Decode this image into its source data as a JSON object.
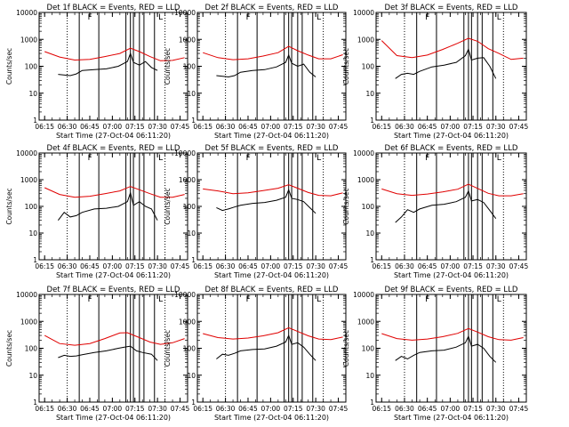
{
  "chart_data": {
    "type": "line",
    "yscale": "log",
    "ylim": [
      1,
      10000
    ],
    "xlim": [
      "06:11:20",
      "07:50:00"
    ],
    "ylabel": "Counts/sec",
    "xlabel": "Start Time (27-Oct-04 06:11:20)",
    "x_tick_labels": [
      "06:15",
      "06:30",
      "06:45",
      "07:00",
      "07:15",
      "07:30",
      "07:45"
    ],
    "y_tick_labels": [
      "1",
      "10",
      "100",
      "1000",
      "10000"
    ],
    "series_colors": {
      "events": "#000000",
      "lld": "#e00000"
    },
    "dotted_lines": [
      "06:30:00",
      "07:35:00"
    ],
    "solid_lines": [
      "06:38:00",
      "06:51:00",
      "07:09:00",
      "07:12:00",
      "07:14:00",
      "07:18:00",
      "07:21:00",
      "07:28:00"
    ],
    "markers": [
      {
        "time": "06:43:00",
        "label": "F"
      },
      {
        "time": "07:30:00",
        "label": "L"
      }
    ],
    "panels": [
      {
        "title": "Det 1f BLACK = Events, RED = LLD",
        "lld": [
          [
            "06:15",
            350
          ],
          [
            "06:25",
            220
          ],
          [
            "06:35",
            170
          ],
          [
            "06:45",
            180
          ],
          [
            "06:55",
            230
          ],
          [
            "07:05",
            300
          ],
          [
            "07:12",
            470
          ],
          [
            "07:18",
            350
          ],
          [
            "07:25",
            230
          ],
          [
            "07:32",
            160
          ],
          [
            "07:40",
            165
          ],
          [
            "07:48",
            210
          ]
        ],
        "events": [
          [
            "06:24",
            50
          ],
          [
            "06:32",
            45
          ],
          [
            "06:36",
            52
          ],
          [
            "06:40",
            70
          ],
          [
            "06:48",
            75
          ],
          [
            "06:56",
            80
          ],
          [
            "07:04",
            100
          ],
          [
            "07:10",
            150
          ],
          [
            "07:12",
            300
          ],
          [
            "07:14",
            140
          ],
          [
            "07:18",
            110
          ],
          [
            "07:22",
            150
          ],
          [
            "07:26",
            90
          ],
          [
            "07:30",
            70
          ]
        ]
      },
      {
        "title": "Det 2f BLACK = Events, RED = LLD",
        "lld": [
          [
            "06:15",
            320
          ],
          [
            "06:25",
            210
          ],
          [
            "06:35",
            175
          ],
          [
            "06:45",
            190
          ],
          [
            "06:55",
            240
          ],
          [
            "07:05",
            320
          ],
          [
            "07:12",
            550
          ],
          [
            "07:18",
            380
          ],
          [
            "07:25",
            260
          ],
          [
            "07:32",
            190
          ],
          [
            "07:40",
            190
          ],
          [
            "07:48",
            270
          ]
        ],
        "events": [
          [
            "06:24",
            45
          ],
          [
            "06:32",
            40
          ],
          [
            "06:36",
            45
          ],
          [
            "06:40",
            60
          ],
          [
            "06:48",
            70
          ],
          [
            "06:56",
            75
          ],
          [
            "07:04",
            95
          ],
          [
            "07:10",
            140
          ],
          [
            "07:12",
            260
          ],
          [
            "07:14",
            130
          ],
          [
            "07:18",
            100
          ],
          [
            "07:22",
            120
          ],
          [
            "07:26",
            60
          ],
          [
            "07:30",
            40
          ]
        ]
      },
      {
        "title": "Det 3f BLACK = Events, RED = LLD",
        "lld": [
          [
            "06:15",
            900
          ],
          [
            "06:25",
            250
          ],
          [
            "06:35",
            210
          ],
          [
            "06:45",
            260
          ],
          [
            "06:55",
            420
          ],
          [
            "07:05",
            720
          ],
          [
            "07:12",
            1100
          ],
          [
            "07:18",
            850
          ],
          [
            "07:25",
            450
          ],
          [
            "07:32",
            300
          ],
          [
            "07:40",
            180
          ],
          [
            "07:48",
            200
          ]
        ],
        "events": [
          [
            "06:24",
            35
          ],
          [
            "06:28",
            50
          ],
          [
            "06:32",
            55
          ],
          [
            "06:36",
            50
          ],
          [
            "06:40",
            65
          ],
          [
            "06:48",
            95
          ],
          [
            "06:56",
            110
          ],
          [
            "07:04",
            140
          ],
          [
            "07:10",
            250
          ],
          [
            "07:12",
            430
          ],
          [
            "07:14",
            170
          ],
          [
            "07:18",
            200
          ],
          [
            "07:22",
            210
          ],
          [
            "07:26",
            100
          ],
          [
            "07:30",
            35
          ]
        ]
      },
      {
        "title": "Det 4f BLACK = Events, RED = LLD",
        "lld": [
          [
            "06:15",
            500
          ],
          [
            "06:25",
            280
          ],
          [
            "06:35",
            220
          ],
          [
            "06:45",
            240
          ],
          [
            "06:55",
            300
          ],
          [
            "07:05",
            380
          ],
          [
            "07:12",
            560
          ],
          [
            "07:18",
            420
          ],
          [
            "07:25",
            300
          ],
          [
            "07:32",
            220
          ],
          [
            "07:40",
            220
          ],
          [
            "07:48",
            280
          ]
        ],
        "events": [
          [
            "06:24",
            30
          ],
          [
            "06:28",
            60
          ],
          [
            "06:32",
            40
          ],
          [
            "06:36",
            45
          ],
          [
            "06:40",
            60
          ],
          [
            "06:48",
            80
          ],
          [
            "06:56",
            85
          ],
          [
            "07:04",
            100
          ],
          [
            "07:10",
            150
          ],
          [
            "07:12",
            320
          ],
          [
            "07:14",
            110
          ],
          [
            "07:18",
            150
          ],
          [
            "07:22",
            100
          ],
          [
            "07:26",
            80
          ],
          [
            "07:30",
            30
          ]
        ]
      },
      {
        "title": "Det 5f BLACK = Events, RED = LLD",
        "lld": [
          [
            "06:15",
            450
          ],
          [
            "06:25",
            380
          ],
          [
            "06:35",
            300
          ],
          [
            "06:45",
            320
          ],
          [
            "06:55",
            390
          ],
          [
            "07:05",
            480
          ],
          [
            "07:12",
            650
          ],
          [
            "07:18",
            480
          ],
          [
            "07:25",
            330
          ],
          [
            "07:32",
            260
          ],
          [
            "07:40",
            250
          ],
          [
            "07:48",
            320
          ]
        ],
        "events": [
          [
            "06:24",
            90
          ],
          [
            "06:28",
            70
          ],
          [
            "06:32",
            80
          ],
          [
            "06:36",
            95
          ],
          [
            "06:40",
            110
          ],
          [
            "06:48",
            130
          ],
          [
            "06:56",
            140
          ],
          [
            "07:04",
            170
          ],
          [
            "07:10",
            220
          ],
          [
            "07:12",
            420
          ],
          [
            "07:14",
            200
          ],
          [
            "07:18",
            180
          ],
          [
            "07:22",
            150
          ],
          [
            "07:26",
            90
          ],
          [
            "07:30",
            55
          ]
        ]
      },
      {
        "title": "Det 6f BLACK = Events, RED = LLD",
        "lld": [
          [
            "06:15",
            450
          ],
          [
            "06:25",
            300
          ],
          [
            "06:35",
            260
          ],
          [
            "06:45",
            290
          ],
          [
            "06:55",
            350
          ],
          [
            "07:05",
            440
          ],
          [
            "07:12",
            680
          ],
          [
            "07:18",
            470
          ],
          [
            "07:25",
            310
          ],
          [
            "07:32",
            250
          ],
          [
            "07:40",
            250
          ],
          [
            "07:48",
            300
          ]
        ],
        "events": [
          [
            "06:24",
            25
          ],
          [
            "06:28",
            40
          ],
          [
            "06:32",
            75
          ],
          [
            "06:36",
            60
          ],
          [
            "06:40",
            80
          ],
          [
            "06:48",
            110
          ],
          [
            "06:56",
            120
          ],
          [
            "07:04",
            150
          ],
          [
            "07:10",
            220
          ],
          [
            "07:12",
            380
          ],
          [
            "07:14",
            160
          ],
          [
            "07:18",
            180
          ],
          [
            "07:22",
            140
          ],
          [
            "07:26",
            70
          ],
          [
            "07:30",
            35
          ]
        ]
      },
      {
        "title": "Det 7f BLACK = Events, RED = LLD",
        "lld": [
          [
            "06:15",
            300
          ],
          [
            "06:25",
            150
          ],
          [
            "06:35",
            130
          ],
          [
            "06:45",
            150
          ],
          [
            "06:55",
            230
          ],
          [
            "07:05",
            370
          ],
          [
            "07:10",
            380
          ],
          [
            "07:18",
            250
          ],
          [
            "07:25",
            170
          ],
          [
            "07:32",
            140
          ],
          [
            "07:40",
            160
          ],
          [
            "07:48",
            230
          ]
        ],
        "events": [
          [
            "06:24",
            45
          ],
          [
            "06:28",
            55
          ],
          [
            "06:32",
            50
          ],
          [
            "06:36",
            52
          ],
          [
            "06:40",
            58
          ],
          [
            "06:48",
            70
          ],
          [
            "06:56",
            80
          ],
          [
            "07:04",
            100
          ],
          [
            "07:08",
            110
          ],
          [
            "07:12",
            120
          ],
          [
            "07:16",
            80
          ],
          [
            "07:20",
            70
          ],
          [
            "07:26",
            60
          ],
          [
            "07:30",
            35
          ]
        ]
      },
      {
        "title": "Det 8f BLACK = Events, RED = LLD",
        "lld": [
          [
            "06:15",
            350
          ],
          [
            "06:25",
            250
          ],
          [
            "06:35",
            220
          ],
          [
            "06:45",
            240
          ],
          [
            "06:55",
            290
          ],
          [
            "07:05",
            380
          ],
          [
            "07:12",
            580
          ],
          [
            "07:18",
            420
          ],
          [
            "07:25",
            290
          ],
          [
            "07:32",
            220
          ],
          [
            "07:40",
            210
          ],
          [
            "07:48",
            260
          ]
        ],
        "events": [
          [
            "06:24",
            40
          ],
          [
            "06:28",
            60
          ],
          [
            "06:32",
            55
          ],
          [
            "06:36",
            65
          ],
          [
            "06:40",
            80
          ],
          [
            "06:48",
            90
          ],
          [
            "06:56",
            95
          ],
          [
            "07:04",
            120
          ],
          [
            "07:10",
            170
          ],
          [
            "07:12",
            300
          ],
          [
            "07:14",
            140
          ],
          [
            "07:18",
            160
          ],
          [
            "07:22",
            110
          ],
          [
            "07:26",
            60
          ],
          [
            "07:30",
            35
          ]
        ]
      },
      {
        "title": "Det 9f BLACK = Events, RED = LLD",
        "lld": [
          [
            "06:15",
            350
          ],
          [
            "06:25",
            230
          ],
          [
            "06:35",
            200
          ],
          [
            "06:45",
            220
          ],
          [
            "06:55",
            270
          ],
          [
            "07:05",
            360
          ],
          [
            "07:12",
            540
          ],
          [
            "07:18",
            400
          ],
          [
            "07:25",
            270
          ],
          [
            "07:32",
            210
          ],
          [
            "07:40",
            200
          ],
          [
            "07:48",
            250
          ]
        ],
        "events": [
          [
            "06:24",
            35
          ],
          [
            "06:28",
            50
          ],
          [
            "06:32",
            40
          ],
          [
            "06:36",
            55
          ],
          [
            "06:40",
            70
          ],
          [
            "06:48",
            80
          ],
          [
            "06:56",
            85
          ],
          [
            "07:04",
            110
          ],
          [
            "07:10",
            160
          ],
          [
            "07:12",
            280
          ],
          [
            "07:14",
            120
          ],
          [
            "07:18",
            140
          ],
          [
            "07:22",
            100
          ],
          [
            "07:26",
            50
          ],
          [
            "07:30",
            30
          ]
        ]
      }
    ]
  }
}
